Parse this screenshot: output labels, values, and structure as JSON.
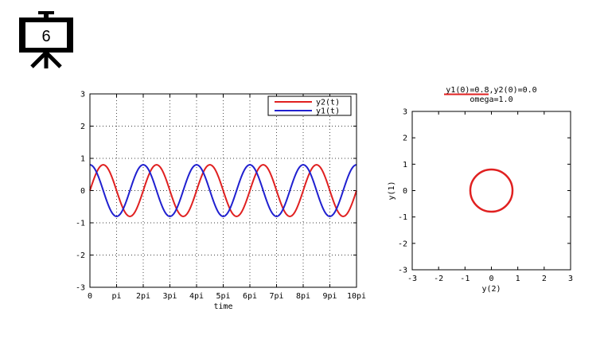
{
  "slide": {
    "number": "6",
    "icon": "presentation-easel-icon"
  },
  "chart_data": [
    {
      "type": "line",
      "title": "",
      "xlabel": "time",
      "ylabel": "",
      "xlim": [
        0,
        31.4159
      ],
      "ylim": [
        -3,
        3
      ],
      "xticks": [
        {
          "value": 0,
          "label": "0"
        },
        {
          "value": 3.14159,
          "label": "pi"
        },
        {
          "value": 6.28319,
          "label": "2pi"
        },
        {
          "value": 9.42478,
          "label": "3pi"
        },
        {
          "value": 12.5664,
          "label": "4pi"
        },
        {
          "value": 15.708,
          "label": "5pi"
        },
        {
          "value": 18.8496,
          "label": "6pi"
        },
        {
          "value": 21.9911,
          "label": "7pi"
        },
        {
          "value": 25.1327,
          "label": "8pi"
        },
        {
          "value": 28.2743,
          "label": "9pi"
        },
        {
          "value": 31.4159,
          "label": "10pi"
        }
      ],
      "yticks": [
        -3,
        -2,
        -1,
        0,
        1,
        2,
        3
      ],
      "grid": true,
      "legend": "top-right",
      "series": [
        {
          "name": "y2(t)",
          "color": "#e02020",
          "function": "0.8*sin(t)",
          "amplitude": 0.8,
          "omega": 1.0,
          "phase": "sin"
        },
        {
          "name": "y1(t)",
          "color": "#2020d0",
          "function": "0.8*cos(t)",
          "amplitude": 0.8,
          "omega": 1.0,
          "phase": "cos"
        }
      ]
    },
    {
      "type": "line",
      "title_line1": "y1(0)=0.8,y2(0)=0.0",
      "title_line2": "omega=1.0",
      "xlabel": "y(2)",
      "ylabel": "y(1)",
      "xlim": [
        -3,
        3
      ],
      "ylim": [
        -3,
        3
      ],
      "xticks": [
        -3,
        -2,
        -1,
        0,
        1,
        2,
        3
      ],
      "yticks": [
        -3,
        -2,
        -1,
        0,
        1,
        2,
        3
      ],
      "grid": false,
      "series": [
        {
          "color": "#e02020",
          "shape": "circle",
          "center": [
            0,
            0
          ],
          "radius": 0.8
        }
      ]
    }
  ]
}
